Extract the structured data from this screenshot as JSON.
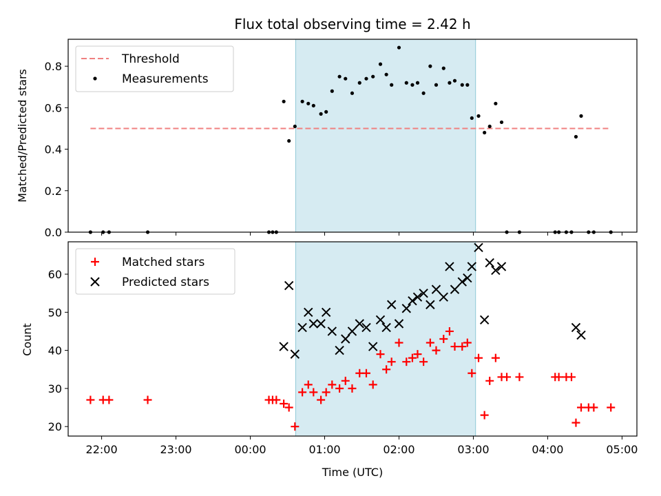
{
  "chart_data": {
    "title": "Flux total observing time = 2.42 h",
    "xlabel": "Time (UTC)",
    "x_unit": "hours relative to 00:00 UTC",
    "xlim": [
      -2.45,
      5.2
    ],
    "x_ticks": [
      {
        "value": -2,
        "label": "22:00"
      },
      {
        "value": -1,
        "label": "23:00"
      },
      {
        "value": 0,
        "label": "00:00"
      },
      {
        "value": 1,
        "label": "01:00"
      },
      {
        "value": 2,
        "label": "02:00"
      },
      {
        "value": 3,
        "label": "03:00"
      },
      {
        "value": 4,
        "label": "04:00"
      },
      {
        "value": 5,
        "label": "05:00"
      }
    ],
    "observing_window": {
      "start": 0.61,
      "end": 3.03,
      "color": "#add8e6"
    },
    "top": {
      "type": "scatter",
      "ylabel": "Matched/Predicted stars",
      "ylim": [
        0,
        0.93
      ],
      "y_ticks": [
        "0.0",
        "0.2",
        "0.4",
        "0.6",
        "0.8"
      ],
      "legend": {
        "position": "upper-left",
        "threshold_label": "Threshold",
        "measurements_label": "Measurements"
      },
      "threshold": {
        "value": 0.5,
        "x_start": -2.15,
        "x_end": 4.85,
        "color": "#f08080"
      },
      "x": [
        -2.15,
        -1.98,
        -1.9,
        -1.38,
        0.25,
        0.3,
        0.35,
        0.45,
        0.52,
        0.6,
        0.7,
        0.78,
        0.85,
        0.95,
        1.02,
        1.1,
        1.2,
        1.28,
        1.37,
        1.47,
        1.56,
        1.65,
        1.75,
        1.83,
        1.9,
        2.0,
        2.1,
        2.18,
        2.25,
        2.33,
        2.42,
        2.5,
        2.6,
        2.68,
        2.75,
        2.85,
        2.92,
        2.98,
        3.07,
        3.15,
        3.22,
        3.3,
        3.38,
        3.45,
        3.62,
        4.1,
        4.15,
        4.25,
        4.32,
        4.38,
        4.45,
        4.55,
        4.62,
        4.85
      ],
      "y": [
        0,
        0,
        0,
        0,
        0,
        0,
        0,
        0.63,
        0.44,
        0.51,
        0.63,
        0.62,
        0.61,
        0.57,
        0.58,
        0.68,
        0.75,
        0.74,
        0.67,
        0.72,
        0.74,
        0.75,
        0.81,
        0.76,
        0.71,
        0.89,
        0.72,
        0.71,
        0.72,
        0.67,
        0.8,
        0.71,
        0.79,
        0.72,
        0.73,
        0.71,
        0.71,
        0.55,
        0.56,
        0.48,
        0.51,
        0.62,
        0.53,
        0,
        0,
        0,
        0,
        0,
        0,
        0.46,
        0.56,
        0,
        0,
        0
      ]
    },
    "bottom": {
      "type": "scatter",
      "ylabel": "Count",
      "ylim": [
        17.5,
        68.5
      ],
      "y_ticks": [
        "20",
        "30",
        "40",
        "50",
        "60"
      ],
      "legend": {
        "position": "upper-left",
        "matched_label": "Matched stars",
        "predicted_label": "Predicted stars"
      },
      "series": [
        {
          "name": "Matched stars",
          "marker": "+",
          "color": "#ff0000",
          "x": [
            -2.15,
            -1.98,
            -1.9,
            -1.38,
            0.25,
            0.3,
            0.35,
            0.45,
            0.52,
            0.6,
            0.7,
            0.78,
            0.85,
            0.95,
            1.02,
            1.1,
            1.2,
            1.28,
            1.37,
            1.47,
            1.56,
            1.65,
            1.75,
            1.83,
            1.9,
            2.0,
            2.1,
            2.18,
            2.25,
            2.33,
            2.42,
            2.5,
            2.6,
            2.68,
            2.75,
            2.85,
            2.92,
            2.98,
            3.07,
            3.15,
            3.22,
            3.3,
            3.38,
            3.45,
            3.62,
            4.1,
            4.15,
            4.25,
            4.32,
            4.38,
            4.45,
            4.55,
            4.62,
            4.85
          ],
          "y": [
            27,
            27,
            27,
            27,
            27,
            27,
            27,
            26,
            25,
            20,
            29,
            31,
            29,
            27,
            29,
            31,
            30,
            32,
            30,
            34,
            34,
            31,
            39,
            35,
            37,
            42,
            37,
            38,
            39,
            37,
            42,
            40,
            43,
            45,
            41,
            41,
            42,
            34,
            38,
            23,
            32,
            38,
            33,
            33,
            33,
            33,
            33,
            33,
            33,
            21,
            25,
            25,
            25,
            25
          ]
        },
        {
          "name": "Predicted stars",
          "marker": "x",
          "color": "#000000",
          "x": [
            0.45,
            0.52,
            0.6,
            0.7,
            0.78,
            0.85,
            0.95,
            1.02,
            1.1,
            1.2,
            1.28,
            1.37,
            1.47,
            1.56,
            1.65,
            1.75,
            1.83,
            1.9,
            2.0,
            2.1,
            2.18,
            2.25,
            2.33,
            2.42,
            2.5,
            2.6,
            2.68,
            2.75,
            2.85,
            2.92,
            2.98,
            3.07,
            3.15,
            3.22,
            3.3,
            3.38,
            4.38,
            4.45
          ],
          "y": [
            41,
            57,
            39,
            46,
            50,
            47,
            47,
            50,
            45,
            40,
            43,
            45,
            47,
            46,
            41,
            48,
            46,
            52,
            47,
            51,
            53,
            54,
            55,
            52,
            56,
            54,
            62,
            56,
            58,
            59,
            62,
            67,
            48,
            63,
            61,
            62,
            46,
            44
          ]
        }
      ]
    }
  }
}
